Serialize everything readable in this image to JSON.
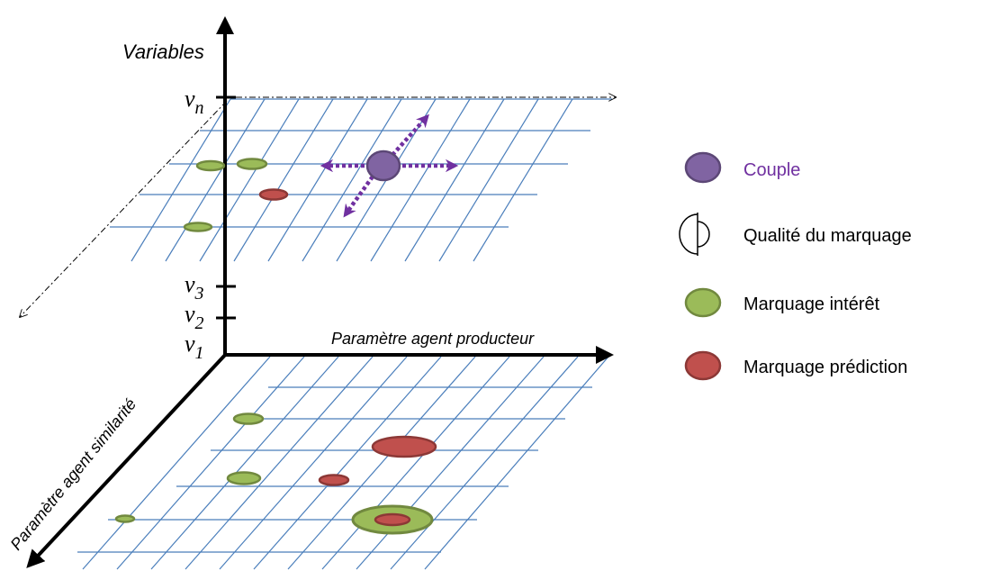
{
  "axes": {
    "variables_label": "Variables",
    "producer_label": "Paramètre agent producteur",
    "similarity_label": "Paramètre agent similarité",
    "ticks": [
      {
        "base": "v",
        "sub": "n"
      },
      {
        "base": "v",
        "sub": "3"
      },
      {
        "base": "v",
        "sub": "2"
      },
      {
        "base": "v",
        "sub": "1"
      }
    ]
  },
  "legend": {
    "items": [
      {
        "label": "Couple",
        "symbol": "couple",
        "color": "#7030a0"
      },
      {
        "label": "Qualité du marquage",
        "symbol": "half-circle",
        "color": "#000000"
      },
      {
        "label": "Marquage intérêt",
        "symbol": "green-ellipse",
        "color": "#000000"
      },
      {
        "label": "Marquage prédiction",
        "symbol": "red-ellipse",
        "color": "#000000"
      }
    ]
  },
  "colors": {
    "grid": "#4a7ebb",
    "interest_fill": "#9bbb59",
    "interest_stroke": "#71893f",
    "prediction_fill": "#c0504d",
    "prediction_stroke": "#8c3836",
    "couple_fill": "#8064a2",
    "couple_stroke": "#5c4776",
    "arrow_purple": "#7030a0",
    "axis": "#000000"
  }
}
